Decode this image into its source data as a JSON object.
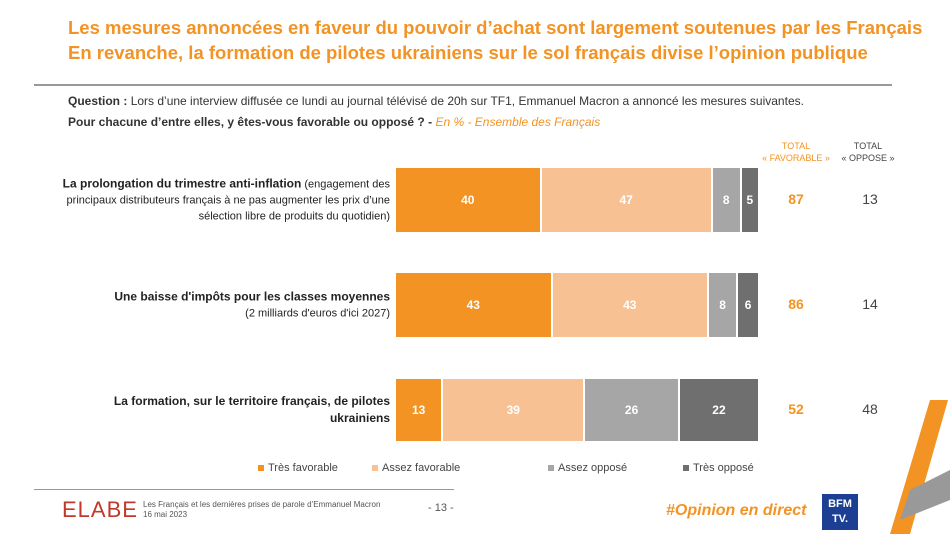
{
  "title_lines": [
    "Les mesures annoncées en faveur du pouvoir d’achat sont largement soutenues par les Français",
    "En revanche, la formation de pilotes ukrainiens sur le sol français divise l’opinion publique"
  ],
  "question": {
    "label": "Question :",
    "text": "Lors d’une interview diffusée ce lundi au journal télévisé de 20h sur TF1, Emmanuel Macron a annoncé les mesures suivantes.",
    "line2": "Pour chacune d’entre elles, y êtes-vous favorable ou opposé ? -",
    "note": "En % - Ensemble des Français"
  },
  "chart_data": {
    "type": "bar",
    "orientation": "horizontal",
    "stacked": true,
    "categories": [
      {
        "bold": "La prolongation du trimestre anti-inflation",
        "detail": " (engagement des principaux distributeurs français à ne pas augmenter les prix d’une sélection libre de produits du quotidien)"
      },
      {
        "bold": "Une baisse d'impôts pour les classes moyennes",
        "detail": "(2 milliards d'euros d'ici 2027)"
      },
      {
        "bold": "La formation, sur le territoire français, de pilotes ukrainiens",
        "detail": ""
      }
    ],
    "series": [
      {
        "name": "Très favorable",
        "color": "#f39324",
        "text_color": "#ffffff",
        "values": [
          40,
          43,
          13
        ]
      },
      {
        "name": "Assez favorable",
        "color": "#f8c193",
        "text_color": "#ffffff",
        "values": [
          47,
          43,
          39
        ]
      },
      {
        "name": "Assez opposé",
        "color": "#a6a6a6",
        "text_color": "#ffffff",
        "values": [
          8,
          8,
          26
        ]
      },
      {
        "name": "Très opposé",
        "color": "#6f6f6f",
        "text_color": "#ffffff",
        "values": [
          5,
          6,
          22
        ]
      }
    ],
    "totals": {
      "favorable_header": [
        "TOTAL",
        "« FAVORABLE »"
      ],
      "oppose_header": [
        "TOTAL",
        "« OPPOSE »"
      ],
      "favorable": [
        87,
        86,
        52
      ],
      "oppose": [
        13,
        14,
        48
      ]
    },
    "xlim": [
      0,
      100
    ],
    "legend": "bottom"
  },
  "footer": {
    "logo": "ELABE",
    "study": "Les Français et les dernières prises de parole d’Emmanuel Macron",
    "date": "16 mai 2023",
    "page": "- 13 -",
    "hashtag": "#Opinion en direct",
    "brand": "BFM TV."
  }
}
